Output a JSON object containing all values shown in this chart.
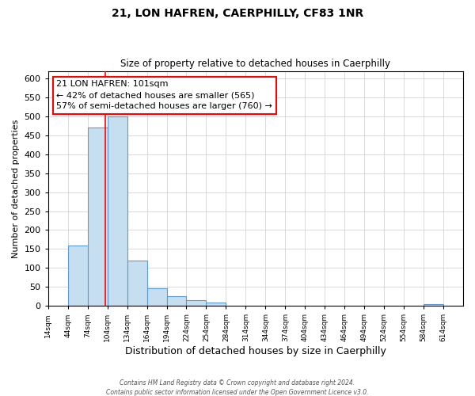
{
  "title": "21, LON HAFREN, CAERPHILLY, CF83 1NR",
  "subtitle": "Size of property relative to detached houses in Caerphilly",
  "xlabel": "Distribution of detached houses by size in Caerphilly",
  "ylabel": "Number of detached properties",
  "bin_starts": [
    14,
    44,
    74,
    104,
    134,
    164,
    194,
    224,
    254,
    284,
    314,
    344,
    374,
    404,
    434,
    464,
    494,
    524,
    554,
    584
  ],
  "bin_width": 30,
  "bar_heights": [
    0,
    160,
    470,
    500,
    120,
    47,
    25,
    15,
    8,
    0,
    0,
    0,
    0,
    0,
    0,
    0,
    0,
    0,
    0,
    5
  ],
  "bar_color": "#c5dff0",
  "bar_edgecolor": "#5b9bd5",
  "property_line_x": 101,
  "annotation_title": "21 LON HAFREN: 101sqm",
  "annotation_line1": "← 42% of detached houses are smaller (565)",
  "annotation_line2": "57% of semi-detached houses are larger (760) →",
  "ylim": [
    0,
    620
  ],
  "xlim": [
    14,
    644
  ],
  "tick_labels": [
    "14sqm",
    "44sqm",
    "74sqm",
    "104sqm",
    "134sqm",
    "164sqm",
    "194sqm",
    "224sqm",
    "254sqm",
    "284sqm",
    "314sqm",
    "344sqm",
    "374sqm",
    "404sqm",
    "434sqm",
    "464sqm",
    "494sqm",
    "524sqm",
    "554sqm",
    "584sqm",
    "614sqm"
  ],
  "tick_positions": [
    14,
    44,
    74,
    104,
    134,
    164,
    194,
    224,
    254,
    284,
    314,
    344,
    374,
    404,
    434,
    464,
    494,
    524,
    554,
    584,
    614
  ],
  "yticks": [
    0,
    50,
    100,
    150,
    200,
    250,
    300,
    350,
    400,
    450,
    500,
    550,
    600
  ],
  "footer_line1": "Contains HM Land Registry data © Crown copyright and database right 2024.",
  "footer_line2": "Contains public sector information licensed under the Open Government Licence v3.0."
}
